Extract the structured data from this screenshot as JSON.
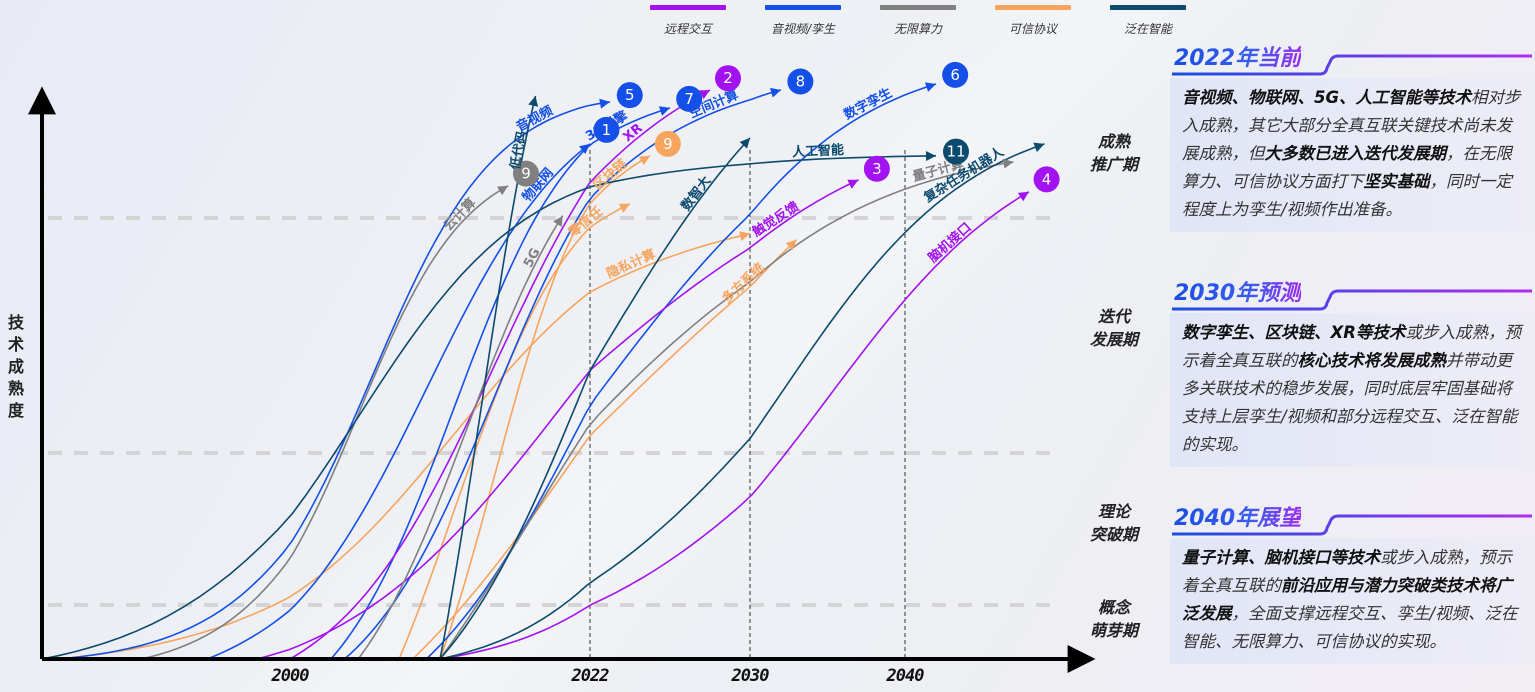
{
  "legend": [
    {
      "name": "远程交互",
      "color": "#a312f0"
    },
    {
      "name": "音视频/孪生",
      "color": "#1450e8"
    },
    {
      "name": "无限算力",
      "color": "#808080"
    },
    {
      "name": "可信协议",
      "color": "#f7a45e"
    },
    {
      "name": "泛在智能",
      "color": "#0c4a6e"
    }
  ],
  "yaxis_label": "技术成熟度",
  "stages": [
    {
      "line1": "成熟",
      "line2": "推广期"
    },
    {
      "line1": "迭代",
      "line2": "发展期"
    },
    {
      "line1": "理论",
      "line2": "突破期"
    },
    {
      "line1": "概念",
      "line2": "萌芽期"
    }
  ],
  "xticks": [
    "2000",
    "2022",
    "2030",
    "2040"
  ],
  "panels": [
    {
      "title": "2022年当前",
      "segments": [
        {
          "t": "音视频、物联网、5G、人工智能等技术",
          "b": true
        },
        {
          "t": "相对步入成熟，其它大部分全真互联关键技术尚未发展成熟，但",
          "b": false
        },
        {
          "t": "大多数已进入迭代发展期",
          "b": true
        },
        {
          "t": "，在无限算力、可信协议方面打下",
          "b": false
        },
        {
          "t": "坚实基础",
          "b": true
        },
        {
          "t": "，同时一定程度上为孪生/视频作出准备。",
          "b": false
        }
      ]
    },
    {
      "title": "2030年预测",
      "segments": [
        {
          "t": "数字孪生、区块链、XR等技术",
          "b": true
        },
        {
          "t": "或步入成熟，预示着全真互联的",
          "b": false
        },
        {
          "t": "核心技术将发展成熟",
          "b": true
        },
        {
          "t": "并带动更多关联技术的稳步发展，同时底层牢固基础将支持上层孪生/视频和部分远程交互、泛在智能的实现。",
          "b": false
        }
      ]
    },
    {
      "title": "2040年展望",
      "segments": [
        {
          "t": "量子计算、脑机接口等技术",
          "b": true
        },
        {
          "t": "或步入成熟，预示着全真互联的",
          "b": false
        },
        {
          "t": "前沿应用与潜力突破类技术将广泛发展",
          "b": true
        },
        {
          "t": "，全面支撑远程交互、孪生/视频、泛在智能、无限算力、可信协议的实现。",
          "b": false
        }
      ]
    }
  ],
  "chart_data": {
    "type": "line",
    "title": "",
    "xlabel": "",
    "ylabel": "技术成熟度",
    "x_ticks": [
      2000,
      2022,
      2030,
      2040
    ],
    "x_range": [
      1985,
      2050
    ],
    "y_range": [
      0,
      1
    ],
    "y_stage_levels": [
      0.1,
      0.4,
      0.8
    ],
    "grid": "dashed horizontal at stage boundaries; dotted vertical at 2022, 2030, 2040",
    "legend_position": "top",
    "series": [
      {
        "category": "可信协议",
        "label": "区块链",
        "badge": "9",
        "start_x": 2011,
        "mid_x": 2015,
        "steep": 0.28,
        "end": [
          2025,
          0.84
        ]
      },
      {
        "category": "可信协议",
        "label": "隐私计算",
        "badge": "",
        "start_x": 1986,
        "mid_x": 2012,
        "steep": 0.14,
        "end": [
          2030,
          0.71
        ]
      },
      {
        "category": "可信协议",
        "label": "零信任",
        "badge": "",
        "start_x": 2008,
        "mid_x": 2012,
        "steep": 0.22,
        "end": [
          2024,
          0.76
        ]
      },
      {
        "category": "可信协议",
        "label": "多方系统",
        "badge": "",
        "start_x": 2009,
        "mid_x": 2022,
        "steep": 0.1,
        "end": [
          2033,
          0.7
        ]
      },
      {
        "category": "音视频/孪生",
        "label": "音视频",
        "badge": "5",
        "start_x": 1986,
        "mid_x": 2006,
        "steep": 0.22,
        "end": [
          2023,
          0.93
        ]
      },
      {
        "category": "音视频/孪生",
        "label": "3D引擎",
        "badge": "7",
        "start_x": 2003,
        "mid_x": 2012,
        "steep": 0.22,
        "end": [
          2026,
          0.92
        ]
      },
      {
        "category": "音视频/孪生",
        "label": "物联网",
        "badge": "1",
        "start_x": 1995,
        "mid_x": 2010,
        "steep": 0.18,
        "end": [
          2022,
          0.86
        ]
      },
      {
        "category": "音视频/孪生",
        "label": "空间计算",
        "badge": "8",
        "start_x": 2004,
        "mid_x": 2015,
        "steep": 0.2,
        "end": [
          2032,
          0.95
        ]
      },
      {
        "category": "音视频/孪生",
        "label": "数字孪生",
        "badge": "6",
        "start_x": 2010,
        "mid_x": 2022,
        "steep": 0.15,
        "end": [
          2042,
          0.96
        ]
      },
      {
        "category": "远程交互",
        "label": "XR",
        "badge": "2",
        "start_x": 2000,
        "mid_x": 2015,
        "steep": 0.17,
        "end": [
          2028,
          0.95
        ]
      },
      {
        "category": "远程交互",
        "label": "触觉反馈",
        "badge": "3",
        "start_x": 1998,
        "mid_x": 2020,
        "steep": 0.12,
        "end": [
          2037,
          0.8
        ]
      },
      {
        "category": "远程交互",
        "label": "脑机接口",
        "badge": "4",
        "start_x": 2011,
        "mid_x": 2035,
        "steep": 0.15,
        "end": [
          2048,
          0.78
        ]
      },
      {
        "category": "无限算力",
        "label": "云计算",
        "badge": "9",
        "start_x": 1991,
        "mid_x": 2005,
        "steep": 0.25,
        "end": [
          2016,
          0.79
        ]
      },
      {
        "category": "无限算力",
        "label": "5G",
        "badge": "",
        "start_x": 2005,
        "mid_x": 2013,
        "steep": 0.22,
        "end": [
          2020,
          0.74
        ]
      },
      {
        "category": "无限算力",
        "label": "量子计算",
        "badge": "",
        "start_x": 2011,
        "mid_x": 2018,
        "steep": 0.12,
        "end": [
          2047,
          0.83
        ]
      },
      {
        "category": "泛在智能",
        "label": "低代码",
        "badge": "",
        "start_x": 2011,
        "mid_x": 2014,
        "steep": 0.35,
        "end": [
          2018,
          0.94
        ]
      },
      {
        "category": "泛在智能",
        "label": "人工智能",
        "badge": "11",
        "start_x": 1985,
        "mid_x": 2005,
        "steep": 0.16,
        "end": [
          2042,
          0.84
        ]
      },
      {
        "category": "泛在智能",
        "label": "数智大",
        "badge": "",
        "start_x": 2011,
        "mid_x": 2022,
        "steep": 0.17,
        "end": [
          2030,
          0.87
        ]
      },
      {
        "category": "泛在智能",
        "label": "复杂任务机器人",
        "badge": "",
        "start_x": 2011,
        "mid_x": 2032,
        "steep": 0.16,
        "end": [
          2049,
          0.86
        ]
      }
    ]
  }
}
